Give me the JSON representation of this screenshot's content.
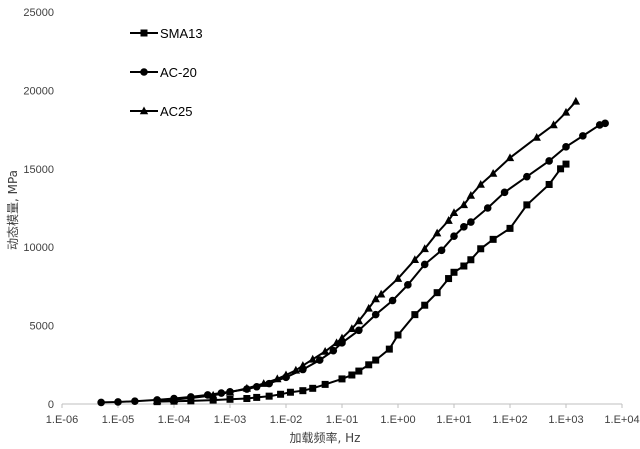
{
  "chart_data": {
    "type": "line",
    "x_scale": "log",
    "xlabel": "加载频率, Hz",
    "ylabel": "动态模量, MPa",
    "x_ticks": [
      {
        "value": 1e-06,
        "label": "1.E-06"
      },
      {
        "value": 1e-05,
        "label": "1.E-05"
      },
      {
        "value": 0.0001,
        "label": "1.E-04"
      },
      {
        "value": 0.001,
        "label": "1.E-03"
      },
      {
        "value": 0.01,
        "label": "1.E-02"
      },
      {
        "value": 0.1,
        "label": "1.E-01"
      },
      {
        "value": 1,
        "label": "1.E+00"
      },
      {
        "value": 10,
        "label": "1.E+01"
      },
      {
        "value": 100,
        "label": "1.E+02"
      },
      {
        "value": 1000,
        "label": "1.E+03"
      },
      {
        "value": 10000,
        "label": "1.E+04"
      }
    ],
    "y_ticks": [
      {
        "value": 0,
        "label": "0"
      },
      {
        "value": 5000,
        "label": "5000"
      },
      {
        "value": 10000,
        "label": "10000"
      },
      {
        "value": 15000,
        "label": "15000"
      },
      {
        "value": 20000,
        "label": "20000"
      },
      {
        "value": 25000,
        "label": "25000"
      }
    ],
    "xlim": [
      1e-06,
      10000
    ],
    "ylim": [
      0,
      25000
    ],
    "grid": false,
    "legend_position": "top-left",
    "series": [
      {
        "name": "SMA13",
        "marker": "square",
        "color": "#000000",
        "x": [
          5e-05,
          0.0001,
          0.0002,
          0.0005,
          0.001,
          0.002,
          0.003,
          0.005,
          0.008,
          0.012,
          0.02,
          0.03,
          0.05,
          0.1,
          0.15,
          0.2,
          0.3,
          0.4,
          0.7,
          1,
          2,
          3,
          5,
          8,
          10,
          15,
          20,
          30,
          50,
          100,
          200,
          500,
          800,
          1000
        ],
        "y": [
          150,
          180,
          200,
          250,
          300,
          350,
          420,
          500,
          620,
          750,
          850,
          1000,
          1250,
          1600,
          1850,
          2100,
          2500,
          2800,
          3500,
          4400,
          5700,
          6300,
          7100,
          8000,
          8400,
          8800,
          9200,
          9900,
          10500,
          11200,
          12700,
          14000,
          15000,
          15300
        ]
      },
      {
        "name": "AC-20",
        "marker": "circle",
        "color": "#000000",
        "x": [
          5e-06,
          1e-05,
          2e-05,
          5e-05,
          0.0001,
          0.0002,
          0.0004,
          0.0007,
          0.001,
          0.002,
          0.003,
          0.005,
          0.01,
          0.02,
          0.04,
          0.07,
          0.1,
          0.2,
          0.4,
          0.8,
          1.5,
          3,
          6,
          10,
          15,
          20,
          40,
          80,
          200,
          500,
          1000,
          2000,
          4000,
          5000
        ],
        "y": [
          100,
          130,
          180,
          260,
          350,
          450,
          580,
          700,
          780,
          950,
          1100,
          1300,
          1700,
          2200,
          2800,
          3400,
          3900,
          4700,
          5700,
          6600,
          7600,
          8900,
          9800,
          10700,
          11300,
          11600,
          12500,
          13500,
          14500,
          15500,
          16400,
          17100,
          17800,
          17900
        ]
      },
      {
        "name": "AC25",
        "marker": "triangle",
        "color": "#000000",
        "x": [
          5e-05,
          0.0001,
          0.0002,
          0.0005,
          0.001,
          0.002,
          0.004,
          0.007,
          0.01,
          0.015,
          0.02,
          0.03,
          0.05,
          0.08,
          0.1,
          0.15,
          0.2,
          0.3,
          0.4,
          0.5,
          1,
          2,
          3,
          5,
          8,
          10,
          15,
          20,
          30,
          50,
          100,
          300,
          600,
          1000,
          1500
        ],
        "y": [
          200,
          280,
          380,
          550,
          750,
          1000,
          1300,
          1600,
          1850,
          2150,
          2450,
          2850,
          3350,
          3900,
          4200,
          4800,
          5300,
          6100,
          6700,
          7000,
          8000,
          9200,
          9900,
          10900,
          11700,
          12200,
          12700,
          13300,
          14000,
          14700,
          15700,
          17000,
          17800,
          18600,
          19300
        ]
      }
    ]
  }
}
